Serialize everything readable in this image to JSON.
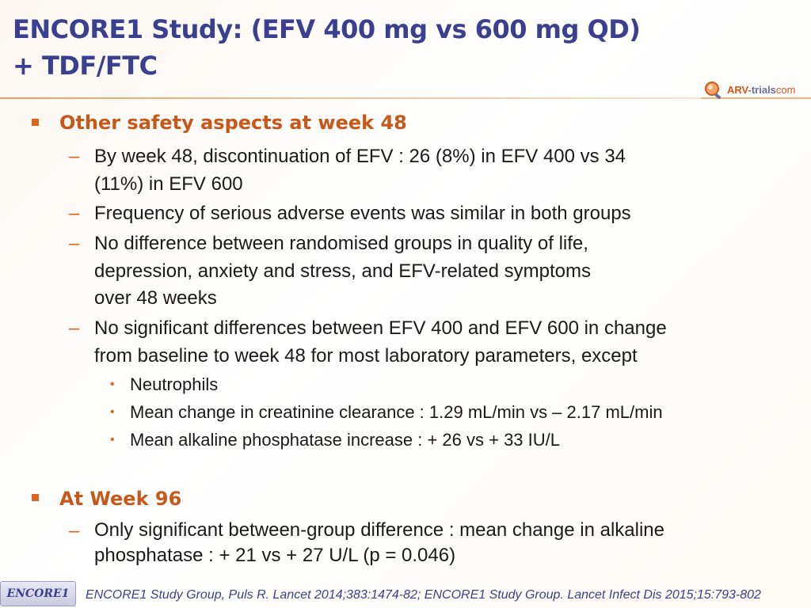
{
  "header": {
    "title_line1": "ENCORE1 Study: (EFV 400 mg vs 600 mg QD)",
    "title_line2": "+ TDF/FTC",
    "logo_part1": "ARV-",
    "logo_part2": "trials",
    "logo_part3": "com"
  },
  "section1": {
    "heading": "Other safety aspects at week 48",
    "items": [
      {
        "lines": [
          "By week 48, discontinuation of EFV : 26 (8%) in EFV 400 vs 34",
          "(11%) in EFV 600"
        ]
      },
      {
        "lines": [
          "Frequency of serious adverse events was similar in both groups"
        ]
      },
      {
        "lines": [
          "No difference between randomised groups in quality of life,",
          "depression, anxiety and stress, and EFV-related symptoms",
          "over 48 weeks"
        ]
      },
      {
        "lines": [
          "No significant differences between EFV 400 and EFV 600 in change",
          "from baseline to week 48 for most laboratory parameters, except"
        ]
      }
    ],
    "subitems": [
      "Neutrophils",
      "Mean change in creatinine clearance : 1.29 mL/min vs – 2.17 mL/min",
      "Mean alkaline phosphatase increase : + 26 vs + 33 IU/L"
    ]
  },
  "section2": {
    "heading": "At Week 96",
    "items": [
      {
        "lines": [
          "Only significant between-group difference : mean change in alkaline",
          "phosphatase : + 21 vs + 27 U/L (p = 0.046)"
        ]
      }
    ]
  },
  "footer": {
    "tag": "ENCORE1",
    "reference": "ENCORE1 Study Group, Puls R. Lancet 2014;383:1474-82; ENCORE1 Study Group. Lancet Infect Dis 2015;15:793-802"
  },
  "colors": {
    "title": "#3b3f8f",
    "accent": "#d9661a",
    "heading": "#c8571a",
    "body_text": "#1a1a1a"
  }
}
